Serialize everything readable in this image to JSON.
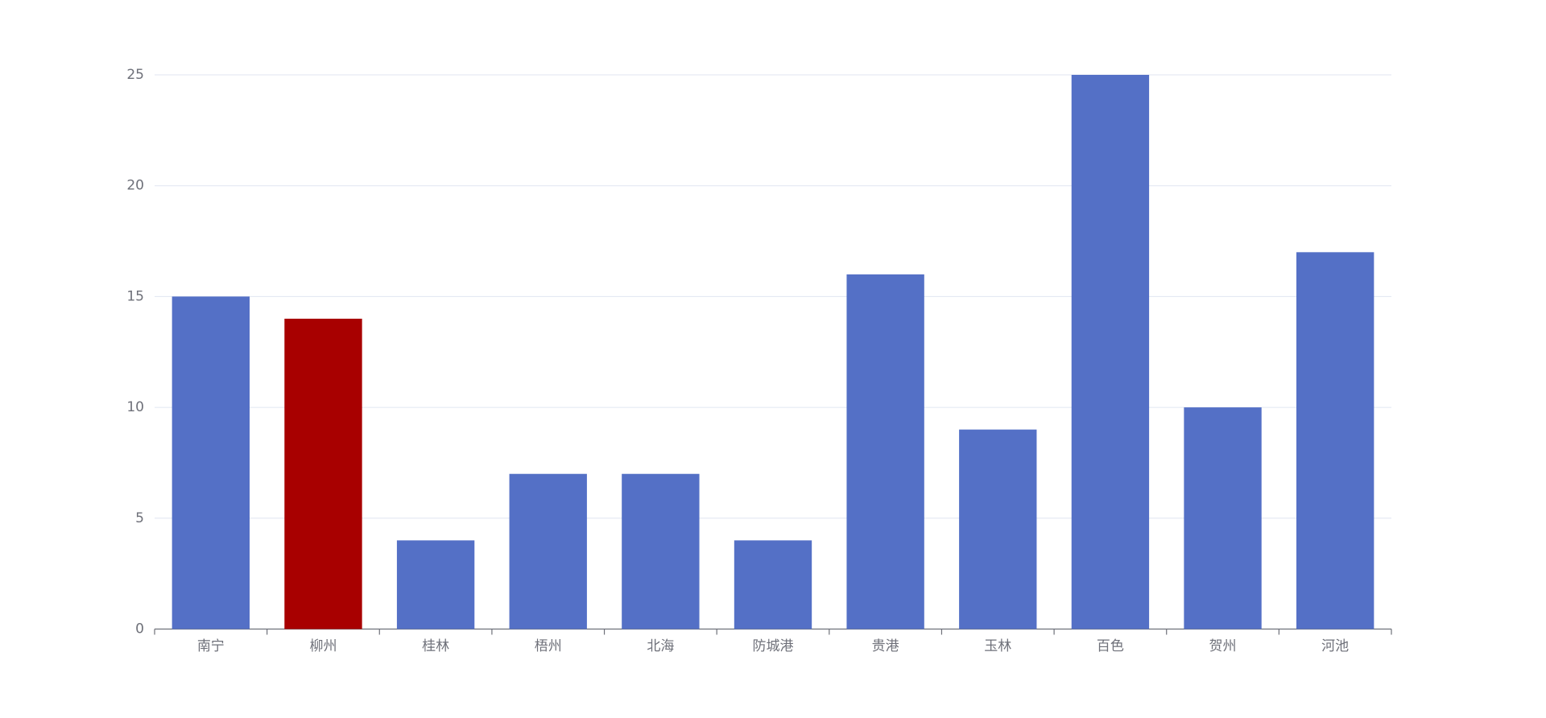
{
  "chart_data": {
    "type": "bar",
    "categories": [
      "南宁",
      "柳州",
      "桂林",
      "梧州",
      "北海",
      "防城港",
      "贵港",
      "玉林",
      "百色",
      "贺州",
      "河池"
    ],
    "values": [
      15,
      14,
      4,
      7,
      7,
      4,
      16,
      9,
      25,
      10,
      17
    ],
    "colors": [
      "#5470c6",
      "#a80000",
      "#5470c6",
      "#5470c6",
      "#5470c6",
      "#5470c6",
      "#5470c6",
      "#5470c6",
      "#5470c6",
      "#5470c6",
      "#5470c6"
    ],
    "ylim": [
      0,
      25
    ],
    "yticks": [
      0,
      5,
      10,
      15,
      20,
      25
    ],
    "grid": true
  }
}
